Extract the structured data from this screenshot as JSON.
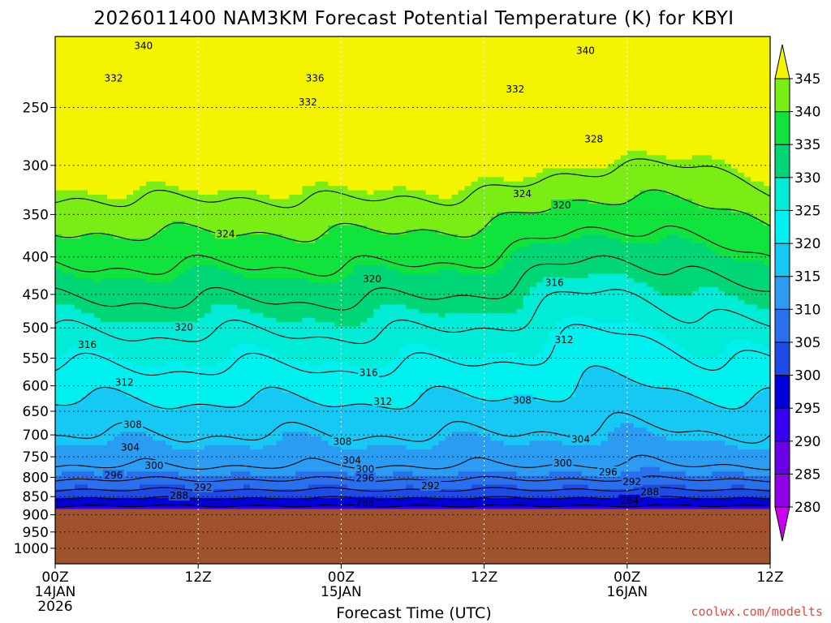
{
  "chart_data": {
    "type": "filled-contour",
    "title": "2026011400 NAM3KM Forecast Potential Temperature (K) for KBYI",
    "xlabel": "Forecast Time (UTC)",
    "ylabel": "",
    "credit": "coolwx.com/modelts",
    "x_ticks": [
      {
        "hour": 0,
        "line1": "00Z",
        "line2": "14JAN",
        "line3": "2026"
      },
      {
        "hour": 12,
        "line1": "12Z",
        "line2": "",
        "line3": ""
      },
      {
        "hour": 24,
        "line1": "00Z",
        "line2": "15JAN",
        "line3": ""
      },
      {
        "hour": 36,
        "line1": "12Z",
        "line2": "",
        "line3": ""
      },
      {
        "hour": 48,
        "line1": "00Z",
        "line2": "16JAN",
        "line3": ""
      },
      {
        "hour": 60,
        "line1": "12Z",
        "line2": "",
        "line3": ""
      }
    ],
    "xlim": [
      0,
      60
    ],
    "y_ticks": [
      250,
      300,
      350,
      400,
      450,
      500,
      550,
      600,
      650,
      700,
      750,
      800,
      850,
      900,
      950,
      1000
    ],
    "ylim_hpa": [
      200,
      1050
    ],
    "y_scale": "log-pressure",
    "colorbar": {
      "levels": [
        280,
        285,
        290,
        295,
        300,
        305,
        310,
        315,
        320,
        325,
        330,
        335,
        340,
        345
      ],
      "labels": [
        "280",
        "285",
        "290",
        "295",
        "300",
        "305",
        "310",
        "315",
        "320",
        "325",
        "330",
        "335",
        "340",
        "345"
      ],
      "colors": [
        "#cc00ee",
        "#9000e6",
        "#6a00e6",
        "#3600f0",
        "#0000d8",
        "#1e4be4",
        "#2a70ec",
        "#2b9cf2",
        "#17c8f4",
        "#00f0f0",
        "#00ecd6",
        "#00d676",
        "#10e43c",
        "#7aee14",
        "#c6f400",
        "#f4f400"
      ],
      "extend": "both"
    },
    "ground_pressure_hpa": 884,
    "ground_color": "#a0522d",
    "contour_labels": [
      {
        "value": "340",
        "hour": 7.4,
        "hpa": 206
      },
      {
        "value": "340",
        "hour": 44.5,
        "hpa": 209
      },
      {
        "value": "336",
        "hour": 21.8,
        "hpa": 228
      },
      {
        "value": "332",
        "hour": 4.9,
        "hpa": 228
      },
      {
        "value": "332",
        "hour": 21.2,
        "hpa": 246
      },
      {
        "value": "332",
        "hour": 38.6,
        "hpa": 236
      },
      {
        "value": "328",
        "hour": 45.2,
        "hpa": 276
      },
      {
        "value": "324",
        "hour": 14.3,
        "hpa": 372
      },
      {
        "value": "324",
        "hour": 39.2,
        "hpa": 328
      },
      {
        "value": "320",
        "hour": 42.5,
        "hpa": 340
      },
      {
        "value": "320",
        "hour": 26.6,
        "hpa": 429
      },
      {
        "value": "320",
        "hour": 10.8,
        "hpa": 499
      },
      {
        "value": "316",
        "hour": 41.9,
        "hpa": 434
      },
      {
        "value": "316",
        "hour": 2.7,
        "hpa": 527
      },
      {
        "value": "316",
        "hour": 26.3,
        "hpa": 576
      },
      {
        "value": "312",
        "hour": 42.7,
        "hpa": 519
      },
      {
        "value": "312",
        "hour": 5.8,
        "hpa": 594
      },
      {
        "value": "312",
        "hour": 27.5,
        "hpa": 630
      },
      {
        "value": "308",
        "hour": 39.2,
        "hpa": 628
      },
      {
        "value": "308",
        "hour": 6.5,
        "hpa": 678
      },
      {
        "value": "308",
        "hour": 24.1,
        "hpa": 715
      },
      {
        "value": "304",
        "hour": 44.1,
        "hpa": 710
      },
      {
        "value": "304",
        "hour": 6.3,
        "hpa": 728
      },
      {
        "value": "304",
        "hour": 24.9,
        "hpa": 758
      },
      {
        "value": "300",
        "hour": 8.3,
        "hpa": 771
      },
      {
        "value": "300",
        "hour": 26.0,
        "hpa": 780
      },
      {
        "value": "300",
        "hour": 42.6,
        "hpa": 765
      },
      {
        "value": "296",
        "hour": 4.9,
        "hpa": 795
      },
      {
        "value": "296",
        "hour": 26.0,
        "hpa": 802
      },
      {
        "value": "296",
        "hour": 46.4,
        "hpa": 787
      },
      {
        "value": "292",
        "hour": 12.4,
        "hpa": 826
      },
      {
        "value": "292",
        "hour": 31.5,
        "hpa": 822
      },
      {
        "value": "292",
        "hour": 48.4,
        "hpa": 812
      },
      {
        "value": "288",
        "hour": 10.4,
        "hpa": 848
      },
      {
        "value": "288",
        "hour": 49.9,
        "hpa": 838
      },
      {
        "value": "288",
        "hour": 26.0,
        "hpa": 867
      },
      {
        "value": "284",
        "hour": 48.2,
        "hpa": 860
      }
    ]
  }
}
